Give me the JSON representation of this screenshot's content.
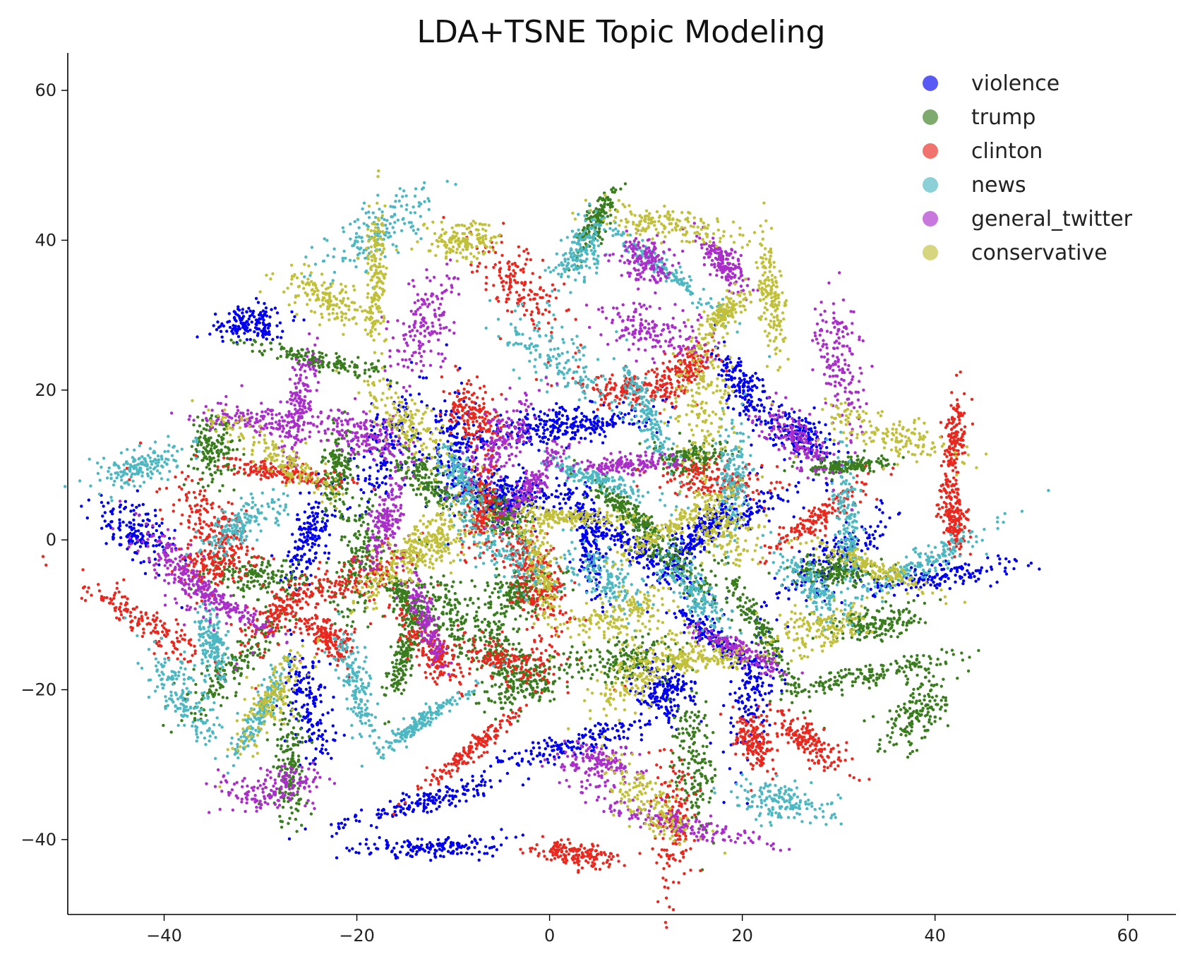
{
  "chart_data": {
    "type": "scatter",
    "title": "LDA+TSNE Topic Modeling",
    "xlabel": "",
    "ylabel": "",
    "xlim": [
      -50,
      65
    ],
    "ylim": [
      -50,
      65
    ],
    "xticks": [
      -40,
      -20,
      0,
      20,
      40,
      60
    ],
    "yticks": [
      -40,
      -20,
      0,
      20,
      40,
      60
    ],
    "xtick_labels": [
      "−40",
      "−20",
      "0",
      "20",
      "40",
      "60"
    ],
    "ytick_labels": [
      "−40",
      "−20",
      "0",
      "20",
      "40",
      "60"
    ],
    "grid": false,
    "legend_position": "top-right",
    "marker_alpha": 0.65,
    "series": [
      {
        "name": "violence",
        "color": "#0000ee",
        "clusters": [
          [
            -31,
            29
          ],
          [
            -43,
            1
          ],
          [
            -10,
            12
          ],
          [
            -2,
            15
          ],
          [
            3,
            15
          ],
          [
            -6,
            6
          ],
          [
            4,
            0
          ],
          [
            15,
            0
          ],
          [
            19,
            3
          ],
          [
            26,
            14
          ],
          [
            -25,
            0
          ],
          [
            -25,
            -22
          ],
          [
            -13,
            -35
          ],
          [
            -12,
            -41
          ],
          [
            12,
            -20
          ],
          [
            21,
            -20
          ],
          [
            3,
            -27
          ],
          [
            40,
            -5
          ],
          [
            -3,
            6
          ],
          [
            9,
            -1
          ],
          [
            20,
            20
          ],
          [
            17,
            -13
          ],
          [
            -17,
            12
          ],
          [
            30,
            -2
          ]
        ]
      },
      {
        "name": "trump",
        "color": "#3a7d1e",
        "clusters": [
          [
            -24,
            24
          ],
          [
            -35,
            12
          ],
          [
            -22,
            9
          ],
          [
            -13,
            8
          ],
          [
            -5,
            3
          ],
          [
            8,
            4
          ],
          [
            15,
            11
          ],
          [
            -30,
            -5
          ],
          [
            -20,
            -4
          ],
          [
            -15,
            -15
          ],
          [
            -5,
            -15
          ],
          [
            8,
            -16
          ],
          [
            30,
            -4
          ],
          [
            34,
            -11
          ],
          [
            33,
            -18
          ],
          [
            38,
            -23
          ],
          [
            -27,
            -30
          ],
          [
            15,
            -30
          ],
          [
            5,
            43
          ],
          [
            31,
            10
          ],
          [
            -33,
            -17
          ],
          [
            -2,
            -19
          ],
          [
            13,
            -3
          ],
          [
            -10,
            -10
          ],
          [
            -3,
            -7
          ],
          [
            22,
            -12
          ],
          [
            -15,
            -8
          ]
        ]
      },
      {
        "name": "clinton",
        "color": "#e8291f",
        "clusters": [
          [
            -3,
            34
          ],
          [
            -8,
            17
          ],
          [
            -28,
            9
          ],
          [
            -35,
            2
          ],
          [
            -7,
            5
          ],
          [
            -1,
            -7
          ],
          [
            -3,
            -2
          ],
          [
            -28,
            -10
          ],
          [
            -23,
            -13
          ],
          [
            -8,
            -28
          ],
          [
            -5,
            -16
          ],
          [
            17,
            8
          ],
          [
            28,
            3
          ],
          [
            27,
            -27
          ],
          [
            42,
            3
          ],
          [
            42,
            13
          ],
          [
            -42,
            -11
          ],
          [
            3,
            -42
          ],
          [
            13,
            -38
          ],
          [
            -35,
            -3
          ],
          [
            14,
            23
          ],
          [
            8,
            20
          ],
          [
            -20,
            -5
          ],
          [
            21,
            -27
          ],
          [
            -12,
            -15
          ]
        ]
      },
      {
        "name": "news",
        "color": "#4db7c2",
        "clusters": [
          [
            -18,
            41
          ],
          [
            3,
            38
          ],
          [
            12,
            36
          ],
          [
            1,
            24
          ],
          [
            10,
            17
          ],
          [
            -9,
            8
          ],
          [
            5,
            8
          ],
          [
            6,
            -5
          ],
          [
            19,
            8
          ],
          [
            27,
            -6
          ],
          [
            31,
            2
          ],
          [
            -35,
            -14
          ],
          [
            -38,
            -21
          ],
          [
            -32,
            2
          ],
          [
            -13,
            -24
          ],
          [
            24,
            -35
          ],
          [
            -20,
            -20
          ],
          [
            15,
            -7
          ],
          [
            39,
            -3
          ],
          [
            -42,
            10
          ],
          [
            -30,
            -23
          ],
          [
            -4,
            -2
          ]
        ]
      },
      {
        "name": "general_twitter",
        "color": "#aa2ec9",
        "clusters": [
          [
            -13,
            29
          ],
          [
            10,
            37
          ],
          [
            18,
            37
          ],
          [
            11,
            28
          ],
          [
            30,
            24
          ],
          [
            -17,
            2
          ],
          [
            -13,
            -10
          ],
          [
            -19,
            14
          ],
          [
            -5,
            13
          ],
          [
            -38,
            -5
          ],
          [
            -34,
            -8
          ],
          [
            -29,
            -33
          ],
          [
            5,
            -30
          ],
          [
            14,
            -38
          ],
          [
            26,
            13
          ],
          [
            -30,
            16
          ],
          [
            8,
            10
          ],
          [
            -2,
            7
          ],
          [
            20,
            -15
          ],
          [
            -26,
            18
          ]
        ]
      },
      {
        "name": "conservative",
        "color": "#c1c03a",
        "clusters": [
          [
            -9,
            40
          ],
          [
            -18,
            35
          ],
          [
            -23,
            32
          ],
          [
            18,
            30
          ],
          [
            23,
            33
          ],
          [
            16,
            18
          ],
          [
            35,
            14
          ],
          [
            -28,
            11
          ],
          [
            -15,
            16
          ],
          [
            2,
            3
          ],
          [
            13,
            2
          ],
          [
            34,
            -4
          ],
          [
            -29,
            -22
          ],
          [
            10,
            -35
          ],
          [
            15,
            -16
          ],
          [
            18,
            1
          ],
          [
            -15,
            -2
          ],
          [
            12,
            42
          ],
          [
            -12,
            -1
          ],
          [
            28,
            -12
          ],
          [
            9,
            -18
          ],
          [
            -1,
            -3
          ],
          [
            7,
            -10
          ]
        ]
      }
    ]
  },
  "legend": {
    "entries": [
      "violence",
      "trump",
      "clinton",
      "news",
      "general_twitter",
      "conservative"
    ]
  }
}
